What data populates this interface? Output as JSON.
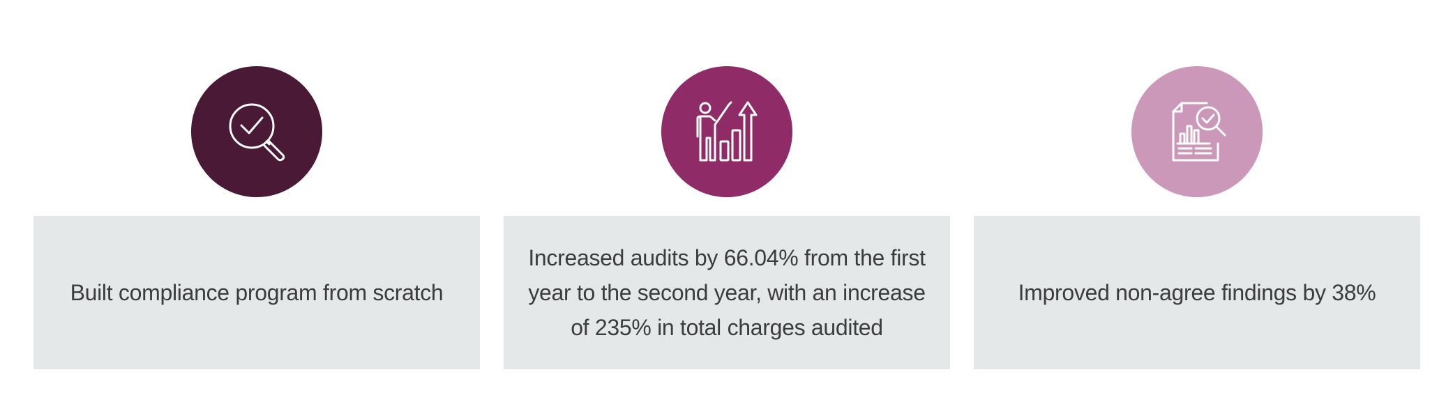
{
  "cards": [
    {
      "icon": "search-check-icon",
      "color": "#4a1935",
      "text": "Built compliance program from scratch"
    },
    {
      "icon": "growth-presentation-icon",
      "color": "#8f2c68",
      "text": "Increased audits by 66.04% from the first year to the second year, with an increase of 235% in total charges audited"
    },
    {
      "icon": "report-audit-icon",
      "color": "#cb98ba",
      "text": "Improved non-agree findings by 38%"
    }
  ]
}
